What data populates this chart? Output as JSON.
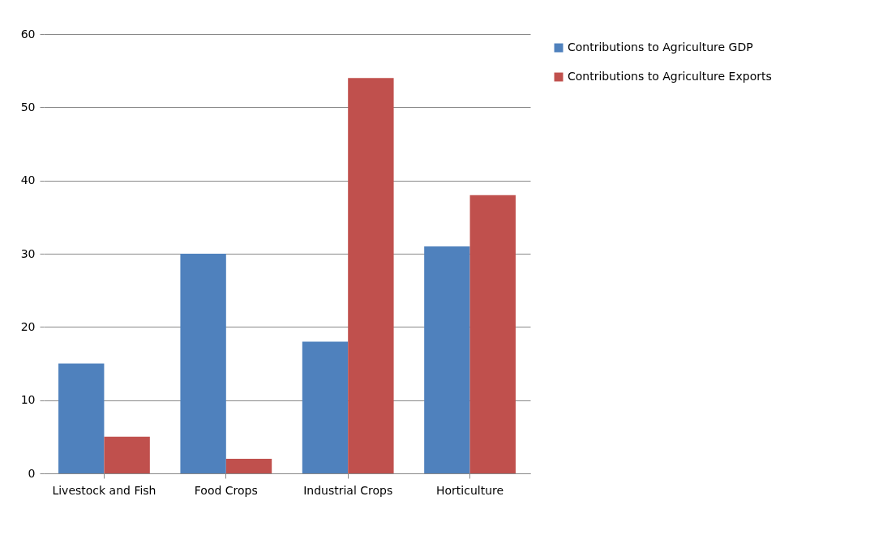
{
  "chart_data": {
    "type": "bar",
    "categories": [
      "Livestock and Fish",
      "Food Crops",
      "Industrial Crops",
      "Horticulture"
    ],
    "series": [
      {
        "name": "Contributions to Agriculture GDP",
        "color": "#4f81bd",
        "values": [
          15,
          30,
          18,
          31
        ]
      },
      {
        "name": "Contributions to Agriculture Exports",
        "color": "#c0504d",
        "values": [
          5,
          2,
          54,
          38
        ]
      }
    ],
    "ylim": [
      0,
      60
    ],
    "yticks": [
      0,
      10,
      20,
      30,
      40,
      50,
      60
    ],
    "grid": "y",
    "legend": "right"
  }
}
